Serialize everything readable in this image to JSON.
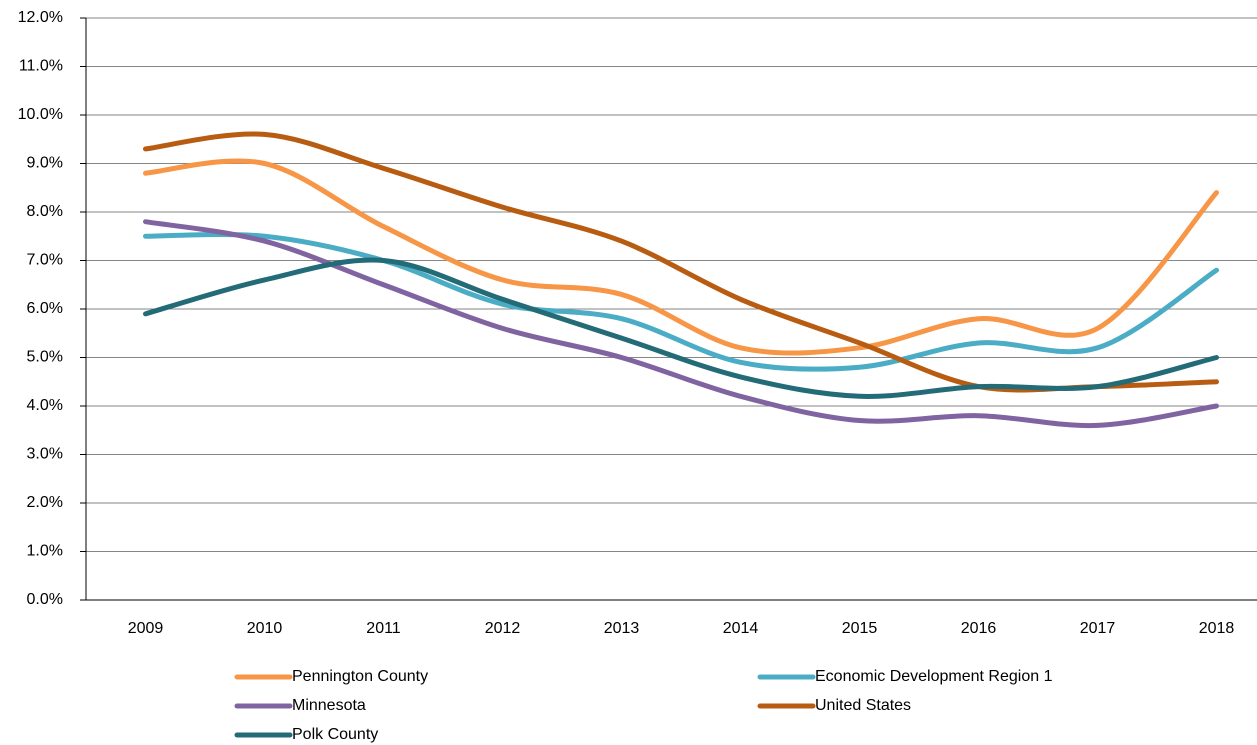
{
  "chart_data": {
    "type": "line",
    "categories": [
      "2009",
      "2010",
      "2011",
      "2012",
      "2013",
      "2014",
      "2015",
      "2016",
      "2017",
      "2018"
    ],
    "series": [
      {
        "name": "Pennington County",
        "color": "#f79646",
        "values": [
          8.8,
          9.0,
          7.7,
          6.6,
          6.3,
          5.2,
          5.2,
          5.8,
          5.6,
          8.4
        ]
      },
      {
        "name": "Economic Development Region 1",
        "color": "#4bacc6",
        "values": [
          7.5,
          7.5,
          7.0,
          6.1,
          5.8,
          4.9,
          4.8,
          5.3,
          5.2,
          6.8
        ]
      },
      {
        "name": "Minnesota",
        "color": "#8064a2",
        "values": [
          7.8,
          7.4,
          6.5,
          5.6,
          5.0,
          4.2,
          3.7,
          3.8,
          3.6,
          4.0
        ]
      },
      {
        "name": "United States",
        "color": "#b85c12",
        "values": [
          9.3,
          9.6,
          8.9,
          8.1,
          7.4,
          6.2,
          5.3,
          4.4,
          4.4,
          4.5
        ]
      },
      {
        "name": "Polk County",
        "color": "#246b78",
        "values": [
          5.9,
          6.6,
          7.0,
          6.2,
          5.4,
          4.6,
          4.2,
          4.4,
          4.4,
          5.0
        ]
      }
    ],
    "ylim": [
      0,
      12
    ],
    "yticks": [
      {
        "value": 0,
        "label": "0.0%"
      },
      {
        "value": 1,
        "label": "1.0%"
      },
      {
        "value": 2,
        "label": "2.0%"
      },
      {
        "value": 3,
        "label": "3.0%"
      },
      {
        "value": 4,
        "label": "4.0%"
      },
      {
        "value": 5,
        "label": "5.0%"
      },
      {
        "value": 6,
        "label": "6.0%"
      },
      {
        "value": 7,
        "label": "7.0%"
      },
      {
        "value": 8,
        "label": "8.0%"
      },
      {
        "value": 9,
        "label": "9.0%"
      },
      {
        "value": 10,
        "label": "10.0%"
      },
      {
        "value": 11,
        "label": "11.0%"
      },
      {
        "value": 12,
        "label": "12.0%"
      }
    ],
    "grid": true
  }
}
